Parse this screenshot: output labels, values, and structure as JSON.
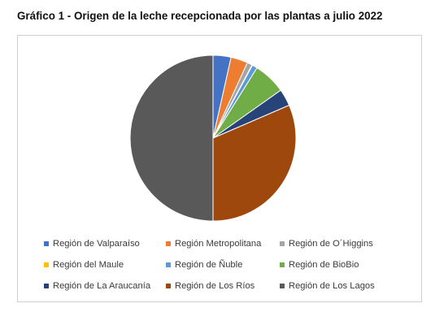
{
  "chart_data": {
    "type": "pie",
    "title": "Gráfico 1 - Origen de la leche recepcionada por las plantas a julio 2022",
    "legend_position": "bottom",
    "series": [
      {
        "name": "Región de Valparaíso",
        "value": 3.5,
        "color": "#4472C4"
      },
      {
        "name": "Región Metropolitana",
        "value": 3.3,
        "color": "#ED7D31"
      },
      {
        "name": "Región de O´Higgins",
        "value": 1.0,
        "color": "#A5A5A5"
      },
      {
        "name": "Región del Maule",
        "value": 0.1,
        "color": "#FFC000"
      },
      {
        "name": "Región de Ñuble",
        "value": 1.0,
        "color": "#5B9BD5"
      },
      {
        "name": "Región de BioBio",
        "value": 6.3,
        "color": "#70AD47"
      },
      {
        "name": "Región de La Araucanía",
        "value": 3.3,
        "color": "#264478"
      },
      {
        "name": "Región de Los Ríos",
        "value": 31.5,
        "color": "#9E480E"
      },
      {
        "name": "Región de Los Lagos",
        "value": 50.0,
        "color": "#595959"
      }
    ]
  }
}
